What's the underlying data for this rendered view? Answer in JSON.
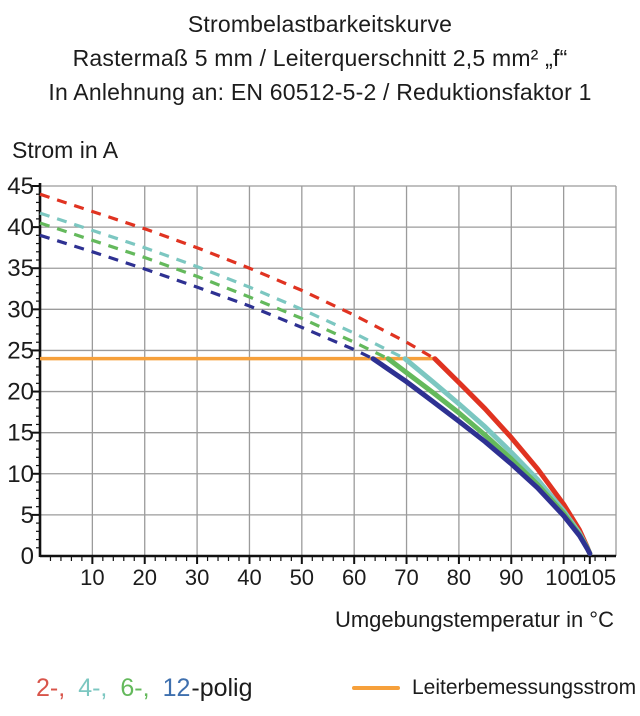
{
  "title": {
    "line1": "Strombelastbarkeitskurve",
    "line2": "Rastermaß 5 mm / Leiterquerschnitt 2,5 mm² „f“",
    "line3": "In Anlehnung an: EN 60512-5-2 / Reduktionsfaktor 1"
  },
  "legend": {
    "poles": [
      {
        "text": "2-,",
        "color": "#d8544a"
      },
      {
        "text": "4-,",
        "color": "#7cc7c1"
      },
      {
        "text": "6-,",
        "color": "#64b95c"
      },
      {
        "text": "12",
        "color": "#3e6fae"
      }
    ],
    "suffix": "-polig",
    "rated": {
      "label": "Leiterbemessungsstrom",
      "color": "#f6a03b"
    }
  },
  "colors": {
    "grid": "#9b9b9b",
    "axis": "#111111",
    "text": "#1c1c1c",
    "series_2polig": "#e03321",
    "series_4polig": "#7cc7c1",
    "series_6polig": "#64b95c",
    "series_12polig": "#2e3192",
    "rated_line": "#f6a03b"
  },
  "chart_data": {
    "type": "line",
    "title": "Strombelastbarkeitskurve — Rastermaß 5 mm / Leiterquerschnitt 2,5 mm² „f“ — In Anlehnung an: EN 60512-5-2 / Reduktionsfaktor 1",
    "xlabel": "Umgebungstemperatur in °C",
    "ylabel": "Strom in A",
    "xlim": [
      0,
      110
    ],
    "ylim": [
      0,
      45
    ],
    "xticks": [
      10,
      20,
      30,
      40,
      50,
      60,
      70,
      80,
      90,
      100,
      105
    ],
    "yticks": [
      0,
      5,
      10,
      15,
      20,
      25,
      30,
      35,
      40,
      45
    ],
    "x_minor_step": 2,
    "y_minor_step": 1,
    "grid": true,
    "legend_position": "bottom",
    "rated_current_A": 24,
    "reference_line": {
      "label": "Leiterbemessungsstrom",
      "color": "#f6a03b",
      "y": 24,
      "x_from": 0,
      "x_to": 75.4
    },
    "series": [
      {
        "name": "2-polig",
        "color": "#e03321",
        "dashed_points": [
          [
            0,
            44
          ],
          [
            10,
            41.9
          ],
          [
            20,
            39.8
          ],
          [
            30,
            37.5
          ],
          [
            40,
            35.0
          ],
          [
            50,
            32.3
          ],
          [
            60,
            29.3
          ],
          [
            70,
            26.0
          ],
          [
            75.4,
            24
          ]
        ],
        "solid_points": [
          [
            75.4,
            24
          ],
          [
            80,
            21.1
          ],
          [
            85,
            17.9
          ],
          [
            90,
            14.4
          ],
          [
            95,
            10.6
          ],
          [
            100,
            6.3
          ],
          [
            103,
            3.2
          ],
          [
            104.5,
            1.1
          ],
          [
            105,
            0.3
          ]
        ]
      },
      {
        "name": "4-polig",
        "color": "#7cc7c1",
        "dashed_points": [
          [
            0,
            41.7
          ],
          [
            10,
            39.6
          ],
          [
            20,
            37.5
          ],
          [
            30,
            35.2
          ],
          [
            40,
            32.7
          ],
          [
            50,
            30.0
          ],
          [
            60,
            27.1
          ],
          [
            69.7,
            24
          ]
        ],
        "solid_points": [
          [
            69.7,
            24
          ],
          [
            75,
            21.2
          ],
          [
            80,
            18.5
          ],
          [
            85,
            15.7
          ],
          [
            90,
            12.6
          ],
          [
            95,
            9.3
          ],
          [
            100,
            5.5
          ],
          [
            103,
            2.8
          ],
          [
            104.5,
            1.0
          ],
          [
            105,
            0.3
          ]
        ]
      },
      {
        "name": "6-polig",
        "color": "#64b95c",
        "dashed_points": [
          [
            0,
            40.5
          ],
          [
            10,
            38.4
          ],
          [
            20,
            36.3
          ],
          [
            30,
            34.0
          ],
          [
            40,
            31.5
          ],
          [
            50,
            28.9
          ],
          [
            60,
            26.0
          ],
          [
            66.5,
            24
          ]
        ],
        "solid_points": [
          [
            66.5,
            24
          ],
          [
            70,
            22.3
          ],
          [
            75,
            19.9
          ],
          [
            80,
            17.4
          ],
          [
            85,
            14.7
          ],
          [
            90,
            11.8
          ],
          [
            95,
            8.7
          ],
          [
            100,
            5.2
          ],
          [
            103,
            2.6
          ],
          [
            104.5,
            1.0
          ],
          [
            105,
            0.3
          ]
        ]
      },
      {
        "name": "12-polig",
        "color": "#2e3192",
        "dashed_points": [
          [
            0,
            39
          ],
          [
            10,
            37.0
          ],
          [
            20,
            34.9
          ],
          [
            30,
            32.7
          ],
          [
            40,
            30.4
          ],
          [
            50,
            27.8
          ],
          [
            60,
            25.1
          ],
          [
            63.6,
            24
          ]
        ],
        "solid_points": [
          [
            63.6,
            24
          ],
          [
            70,
            21.2
          ],
          [
            75,
            18.8
          ],
          [
            80,
            16.4
          ],
          [
            85,
            13.9
          ],
          [
            90,
            11.2
          ],
          [
            95,
            8.3
          ],
          [
            100,
            4.9
          ],
          [
            103,
            2.5
          ],
          [
            104.5,
            0.9
          ],
          [
            105,
            0.3
          ]
        ]
      }
    ]
  }
}
